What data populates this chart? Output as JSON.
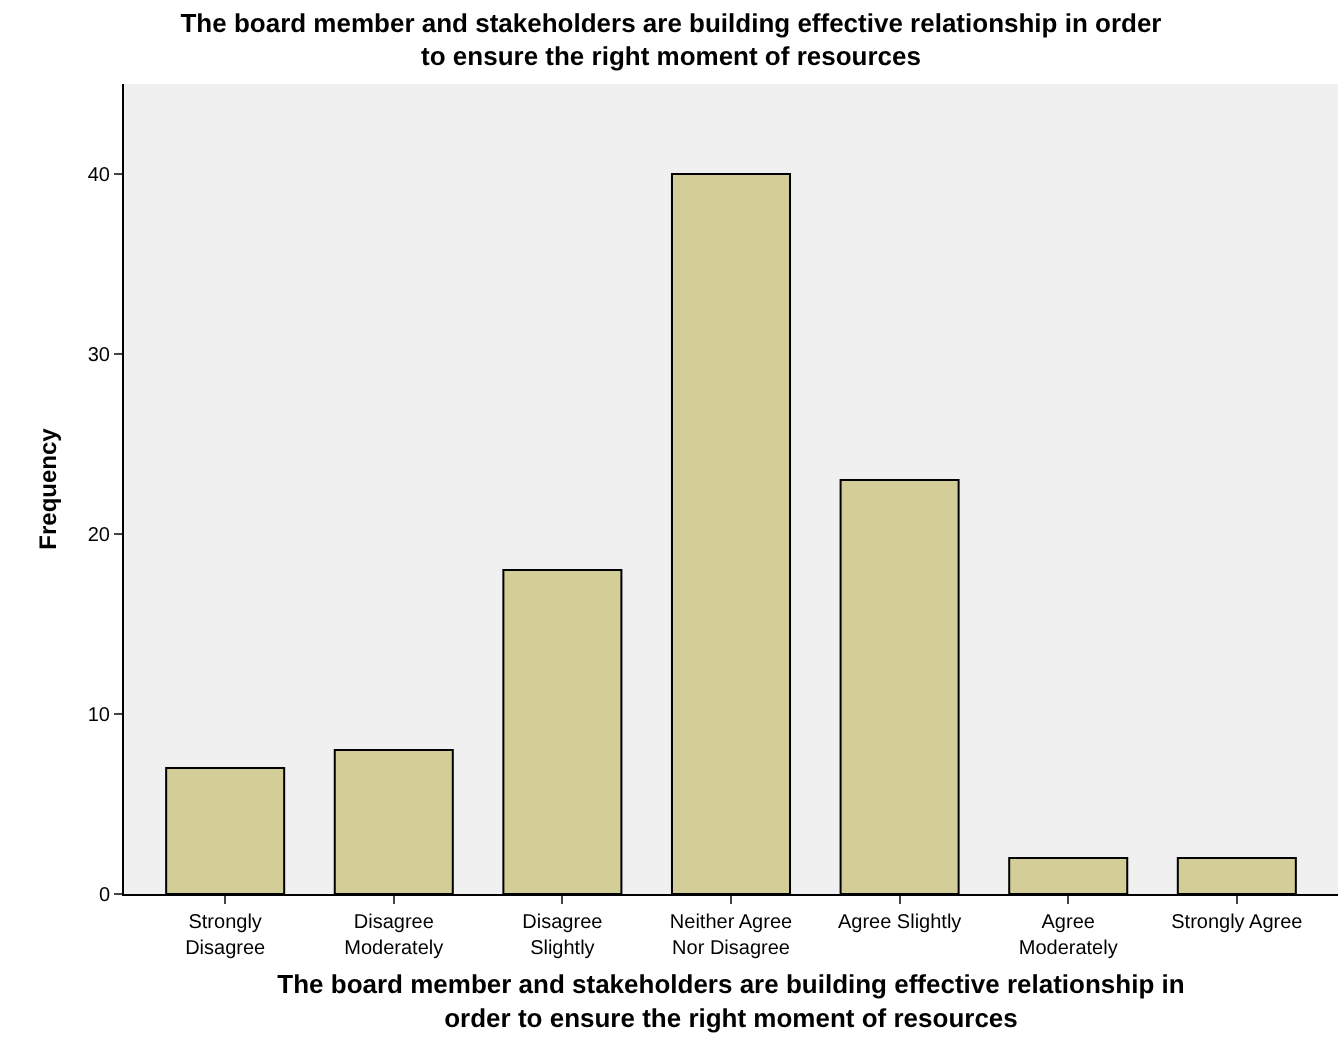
{
  "chart_data": {
    "type": "bar",
    "title": "The board member and stakeholders are building effective relationship in order\nto ensure the right moment of resources",
    "xlabel": "The board member and stakeholders are building effective relationship in\norder to ensure the right moment of resources",
    "ylabel": "Frequency",
    "categories": [
      "Strongly\nDisagree",
      "Disagree\nModerately",
      "Disagree\nSlightly",
      "Neither Agree\nNor Disagree",
      "Agree Slightly",
      "Agree\nModerately",
      "Strongly Agree"
    ],
    "values": [
      7,
      8,
      18,
      40,
      23,
      2,
      2
    ],
    "color": "#d3ce97",
    "ylim": [
      0,
      45
    ],
    "yticks": [
      0,
      10,
      20,
      30,
      40
    ],
    "grid": false,
    "legend": false
  }
}
